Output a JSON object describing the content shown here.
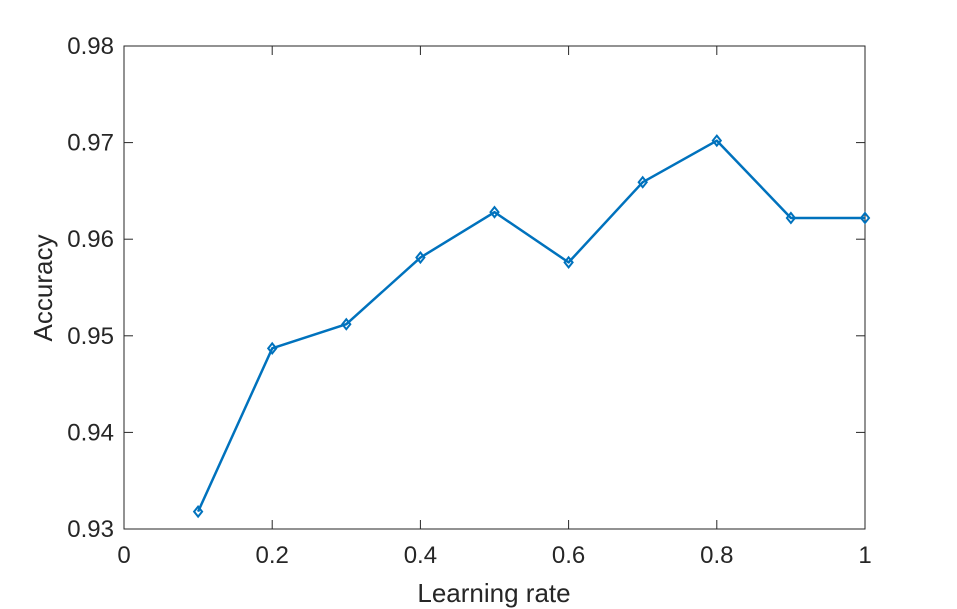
{
  "chart_data": {
    "type": "line",
    "title": "",
    "xlabel": "Learning rate",
    "ylabel": "Accuracy",
    "xlim": [
      0,
      1
    ],
    "ylim": [
      0.93,
      0.98
    ],
    "xticks": [
      0,
      0.2,
      0.4,
      0.6,
      0.8,
      1
    ],
    "xtick_labels": [
      "0",
      "0.2",
      "0.4",
      "0.6",
      "0.8",
      "1"
    ],
    "yticks": [
      0.93,
      0.94,
      0.95,
      0.96,
      0.97,
      0.98
    ],
    "ytick_labels": [
      "0.93",
      "0.94",
      "0.95",
      "0.96",
      "0.97",
      "0.98"
    ],
    "grid": false,
    "marker": "diamond",
    "series": [
      {
        "color": "#0072BD",
        "x": [
          0.1,
          0.2,
          0.3,
          0.4,
          0.5,
          0.6,
          0.7,
          0.8,
          0.9,
          1.0
        ],
        "y": [
          0.9318,
          0.9487,
          0.9512,
          0.9581,
          0.9628,
          0.9576,
          0.9659,
          0.9702,
          0.9622,
          0.9622
        ]
      }
    ]
  }
}
